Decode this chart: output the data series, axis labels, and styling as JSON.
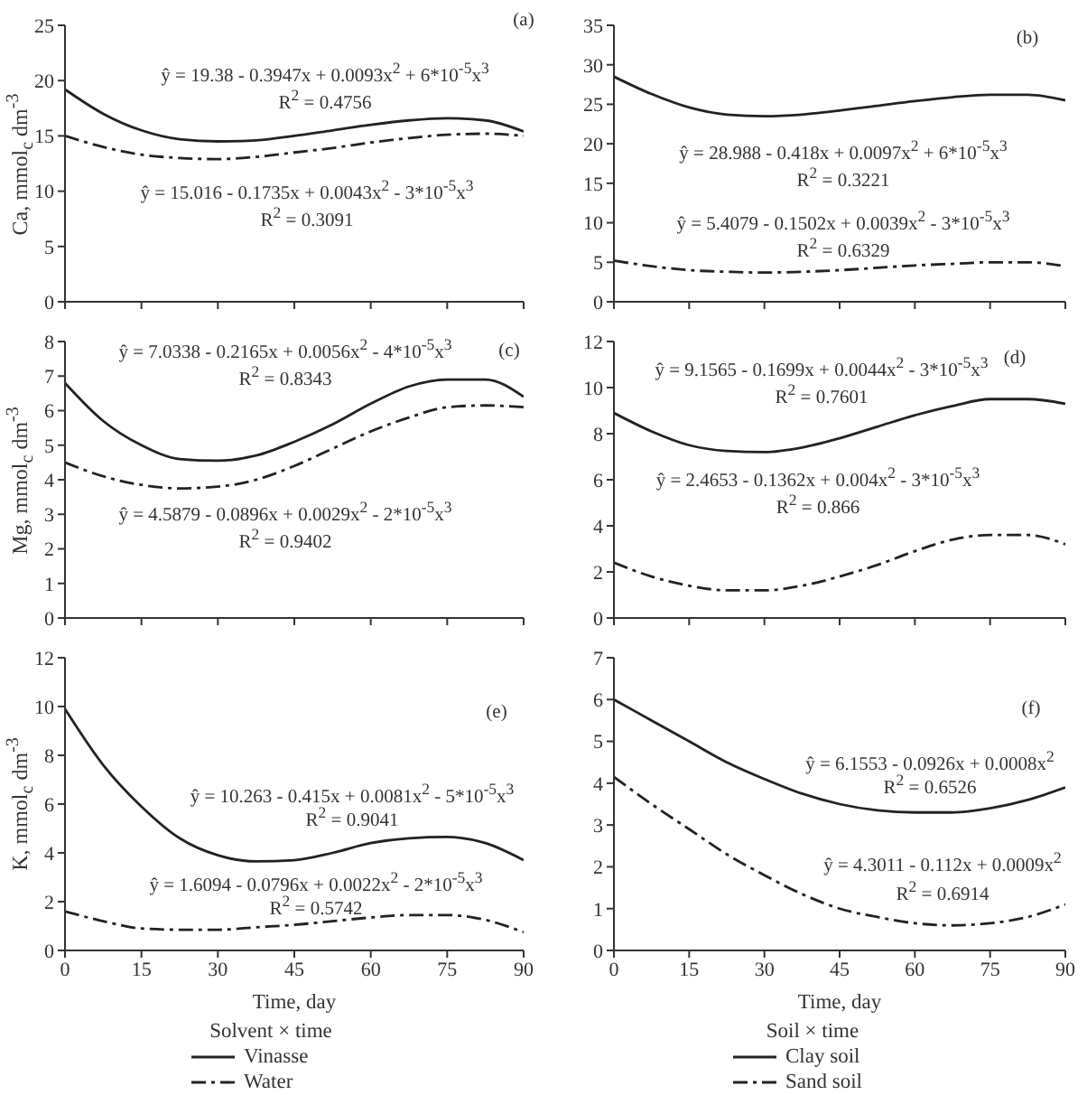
{
  "chart_data": [
    {
      "type": "line",
      "x": [
        0,
        7.5,
        15,
        22.5,
        30,
        37.5,
        45,
        52.5,
        60,
        67.5,
        75,
        82.5,
        90
      ],
      "ylabel": "Ca, mmol$_{c}$ dm$^{-3}$",
      "xlim": [
        0,
        90
      ],
      "xticks": [
        0,
        15,
        30,
        45,
        60,
        75,
        90
      ],
      "ylim": [
        0,
        25
      ],
      "yticks": [
        0,
        5,
        10,
        15,
        20,
        25
      ],
      "tick_labels": "y",
      "marker": "none",
      "legend": false,
      "annotations": [
        "(a)",
        "ŷ = 19.38 - 0.3947x + 0.0093x$^{2}$ + 6*10$^{-5}$x$^{3}$",
        "R$^{2}$ = 0.4756",
        "ŷ = 15.016 - 0.1735x + 0.0043x$^{2}$ - 3*10$^{-5}$x$^{3}$",
        "R$^{2}$ = 0.3091"
      ],
      "series": [
        {
          "color": "#222222",
          "line_style": "solid",
          "values": [
            19.2,
            17,
            15.5,
            14.7,
            14.5,
            14.6,
            15,
            15.5,
            16,
            16.4,
            16.6,
            16.4,
            15.4
          ]
        },
        {
          "color": "#222222",
          "line_style": "dashed",
          "values": [
            15,
            14,
            13.3,
            13,
            12.9,
            13.1,
            13.5,
            13.9,
            14.4,
            14.8,
            15.1,
            15.2,
            15
          ]
        }
      ]
    },
    {
      "type": "line",
      "x": [
        0,
        7.5,
        15,
        22.5,
        30,
        37.5,
        45,
        52.5,
        60,
        67.5,
        75,
        82.5,
        90
      ],
      "xlim": [
        0,
        90
      ],
      "xticks": [
        0,
        15,
        30,
        45,
        60,
        75,
        90
      ],
      "ylim": [
        0,
        35
      ],
      "yticks": [
        0,
        5,
        10,
        15,
        20,
        25,
        30,
        35
      ],
      "tick_labels": "y",
      "marker": "none",
      "legend": false,
      "annotations": [
        "(b)",
        "ŷ = 28.988 - 0.418x + 0.0097x$^{2}$ + 6*10$^{-5}$x$^{3}$",
        "R$^{2}$ = 0.3221",
        "ŷ = 5.4079 - 0.1502x + 0.0039x$^{2}$ - 3*10$^{-5}$x$^{3}$",
        "R$^{2}$ = 0.6329"
      ],
      "series": [
        {
          "color": "#222222",
          "line_style": "solid",
          "values": [
            28.5,
            26.3,
            24.6,
            23.7,
            23.5,
            23.7,
            24.2,
            24.8,
            25.4,
            25.9,
            26.2,
            26.2,
            25.5
          ]
        },
        {
          "color": "#222222",
          "line_style": "dashed",
          "values": [
            5.2,
            4.5,
            4,
            3.8,
            3.7,
            3.8,
            4,
            4.3,
            4.6,
            4.8,
            5,
            5,
            4.5
          ]
        }
      ]
    },
    {
      "type": "line",
      "x": [
        0,
        7.5,
        15,
        22.5,
        30,
        37.5,
        45,
        52.5,
        60,
        67.5,
        75,
        82.5,
        90
      ],
      "ylabel": "Mg, mmol$_{c}$ dm$^{-3}$",
      "xlim": [
        0,
        90
      ],
      "xticks": [
        0,
        15,
        30,
        45,
        60,
        75,
        90
      ],
      "ylim": [
        0,
        8
      ],
      "yticks": [
        0,
        1,
        2,
        3,
        4,
        5,
        6,
        7,
        8
      ],
      "tick_labels": "y",
      "marker": "none",
      "legend": false,
      "annotations": [
        "(c)",
        "ŷ = 7.0338 - 0.2165x + 0.0056x$^{2}$ - 4*10$^{-5}$x$^{3}$",
        "R$^{2}$ = 0.8343",
        "ŷ = 4.5879 - 0.0896x + 0.0029x$^{2}$ - 2*10$^{-5}$x$^{3}$",
        "R$^{2}$ = 0.9402"
      ],
      "series": [
        {
          "color": "#222222",
          "line_style": "solid",
          "values": [
            6.8,
            5.7,
            5,
            4.6,
            4.55,
            4.7,
            5.1,
            5.6,
            6.2,
            6.7,
            6.9,
            6.9,
            6.4
          ]
        },
        {
          "color": "#222222",
          "line_style": "dashed",
          "values": [
            4.5,
            4.1,
            3.85,
            3.75,
            3.8,
            4,
            4.4,
            4.9,
            5.4,
            5.8,
            6.1,
            6.15,
            6.1
          ]
        }
      ]
    },
    {
      "type": "line",
      "x": [
        0,
        7.5,
        15,
        22.5,
        30,
        37.5,
        45,
        52.5,
        60,
        67.5,
        75,
        82.5,
        90
      ],
      "xlim": [
        0,
        90
      ],
      "xticks": [
        0,
        15,
        30,
        45,
        60,
        75,
        90
      ],
      "ylim": [
        0,
        12
      ],
      "yticks": [
        0,
        2,
        4,
        6,
        8,
        10,
        12
      ],
      "tick_labels": "y",
      "marker": "none",
      "legend": false,
      "annotations": [
        "(d)",
        "ŷ = 9.1565 - 0.1699x + 0.0044x$^{2}$ - 3*10$^{-5}$x$^{3}$",
        "R$^{2}$ = 0.7601",
        "ŷ = 2.4653 - 0.1362x + 0.004x$^{2}$ - 3*10$^{-5}$x$^{3}$",
        "R$^{2}$ = 0.866"
      ],
      "series": [
        {
          "color": "#222222",
          "line_style": "solid",
          "values": [
            8.9,
            8.1,
            7.5,
            7.25,
            7.2,
            7.4,
            7.8,
            8.3,
            8.8,
            9.2,
            9.5,
            9.5,
            9.3
          ]
        },
        {
          "color": "#222222",
          "line_style": "dashed",
          "values": [
            2.4,
            1.8,
            1.4,
            1.2,
            1.2,
            1.4,
            1.8,
            2.3,
            2.9,
            3.4,
            3.6,
            3.6,
            3.2
          ]
        }
      ]
    },
    {
      "type": "line",
      "x": [
        0,
        7.5,
        15,
        22.5,
        30,
        37.5,
        45,
        52.5,
        60,
        67.5,
        75,
        82.5,
        90
      ],
      "xlabel": "Time, day",
      "ylabel": "K, mmol$_{c}$ dm$^{-3}$",
      "xlim": [
        0,
        90
      ],
      "xticks": [
        0,
        15,
        30,
        45,
        60,
        75,
        90
      ],
      "ylim": [
        0,
        12
      ],
      "yticks": [
        0,
        2,
        4,
        6,
        8,
        10,
        12
      ],
      "marker": "none",
      "legend": "bottom",
      "legend_title": "Solvent × time",
      "annotations": [
        "(e)",
        "ŷ = 10.263 - 0.415x + 0.0081x$^{2}$ - 5*10$^{-5}$x$^{3}$",
        "R$^{2}$ = 0.9041",
        "ŷ = 1.6094 - 0.0796x + 0.0022x$^{2}$ - 2*10$^{-5}$x$^{3}$",
        "R$^{2}$ = 0.5742"
      ],
      "series": [
        {
          "name": "Vinasse",
          "color": "#222222",
          "line_style": "solid",
          "values": [
            9.9,
            7.6,
            5.9,
            4.6,
            3.9,
            3.65,
            3.7,
            4,
            4.4,
            4.6,
            4.65,
            4.4,
            3.7
          ]
        },
        {
          "name": "Water",
          "color": "#222222",
          "line_style": "dashed",
          "values": [
            1.6,
            1.2,
            0.9,
            0.85,
            0.85,
            0.95,
            1.05,
            1.2,
            1.35,
            1.45,
            1.45,
            1.25,
            0.75
          ]
        }
      ]
    },
    {
      "type": "line",
      "x": [
        0,
        7.5,
        15,
        22.5,
        30,
        37.5,
        45,
        52.5,
        60,
        67.5,
        75,
        82.5,
        90
      ],
      "xlabel": "Time, day",
      "xlim": [
        0,
        90
      ],
      "xticks": [
        0,
        15,
        30,
        45,
        60,
        75,
        90
      ],
      "ylim": [
        0,
        7
      ],
      "yticks": [
        0,
        1,
        2,
        3,
        4,
        5,
        6,
        7
      ],
      "marker": "none",
      "legend": "bottom",
      "legend_title": "Soil × time",
      "annotations": [
        "(f)",
        "ŷ = 6.1553 - 0.0926x + 0.0008x$^{2}$",
        "R$^{2}$ = 0.6526",
        "ŷ = 4.3011 - 0.112x + 0.0009x$^{2}$",
        "R$^{2}$ = 0.6914"
      ],
      "series": [
        {
          "name": "Clay soil",
          "color": "#222222",
          "line_style": "solid",
          "values": [
            6,
            5.5,
            5,
            4.5,
            4.1,
            3.75,
            3.5,
            3.35,
            3.3,
            3.3,
            3.4,
            3.6,
            3.9
          ]
        },
        {
          "name": "Sand soil",
          "color": "#222222",
          "line_style": "dashed",
          "values": [
            4.15,
            3.5,
            2.9,
            2.3,
            1.8,
            1.35,
            1,
            0.8,
            0.65,
            0.6,
            0.65,
            0.8,
            1.1
          ]
        }
      ]
    }
  ]
}
